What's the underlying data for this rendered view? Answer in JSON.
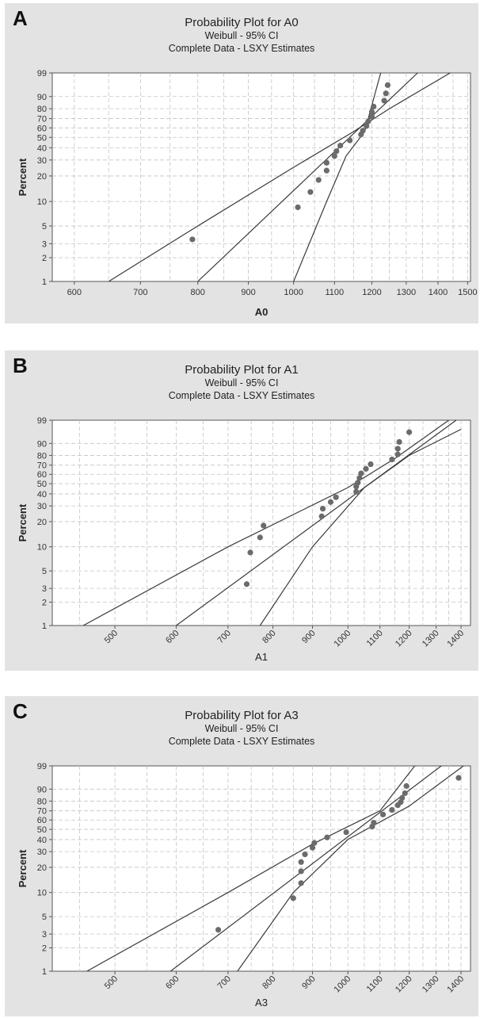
{
  "chart_data": [
    {
      "panel": "A",
      "type": "scatter",
      "title": "Probability Plot for A0",
      "subtitle_line1": "Weibull - 95% CI",
      "subtitle_line2": "Complete Data - LSXY Estimates",
      "xlabel": "A0",
      "ylabel": "Percent",
      "x_scale": "log",
      "y_scale": "weibull",
      "xlim": [
        570,
        1510
      ],
      "ylim": [
        1,
        99
      ],
      "grid": true,
      "x_ticks": [
        600,
        700,
        800,
        900,
        1000,
        1100,
        1200,
        1300,
        1400,
        1500
      ],
      "x_tick_labels": [
        "600",
        "700",
        "800",
        "900",
        "1000",
        "1100",
        "1200",
        "1300",
        "1400",
        "1500"
      ],
      "x_tick_rotated": false,
      "y_ticks": [
        1,
        2,
        3,
        5,
        10,
        20,
        30,
        40,
        50,
        60,
        70,
        80,
        90,
        99
      ],
      "y_tick_labels": [
        "1",
        "2",
        "3",
        "5",
        "10",
        "20",
        "30",
        "40",
        "50",
        "60",
        "70",
        "80",
        "90",
        "99"
      ],
      "points": [
        [
          790,
          3.4
        ],
        [
          1010,
          8.5
        ],
        [
          1040,
          13
        ],
        [
          1060,
          18
        ],
        [
          1080,
          23
        ],
        [
          1080,
          28
        ],
        [
          1100,
          33
        ],
        [
          1105,
          37
        ],
        [
          1115,
          42
        ],
        [
          1140,
          47
        ],
        [
          1170,
          53
        ],
        [
          1175,
          57
        ],
        [
          1185,
          62
        ],
        [
          1190,
          67
        ],
        [
          1200,
          72
        ],
        [
          1200,
          77
        ],
        [
          1205,
          82
        ],
        [
          1235,
          87
        ],
        [
          1240,
          92
        ],
        [
          1245,
          96
        ]
      ],
      "fit_line": [
        [
          800,
          1
        ],
        [
          1335,
          99
        ]
      ],
      "ci_upper": [
        [
          1000,
          1
        ],
        [
          1080,
          10
        ],
        [
          1130,
          33
        ],
        [
          1180,
          56
        ],
        [
          1225,
          99
        ]
      ],
      "ci_lower": [
        [
          650,
          1
        ],
        [
          800,
          5
        ],
        [
          1000,
          25
        ],
        [
          1150,
          56
        ],
        [
          1250,
          80
        ],
        [
          1440,
          99
        ]
      ]
    },
    {
      "panel": "B",
      "type": "scatter",
      "title": "Probability Plot for A1",
      "subtitle_line1": "Weibull - 95% CI",
      "subtitle_line2": "Complete Data - LSXY Estimates",
      "xlabel": "A1",
      "ylabel": "Percent",
      "x_scale": "log",
      "y_scale": "weibull",
      "xlim": [
        415,
        1440
      ],
      "ylim": [
        1,
        99
      ],
      "grid": true,
      "x_ticks": [
        500,
        600,
        700,
        800,
        900,
        1000,
        1100,
        1200,
        1300,
        1400
      ],
      "x_tick_labels": [
        "500",
        "600",
        "700",
        "800",
        "900",
        "1000",
        "1100",
        "1200",
        "1300",
        "1400"
      ],
      "x_tick_rotated": true,
      "y_ticks": [
        1,
        2,
        3,
        5,
        10,
        20,
        30,
        40,
        50,
        60,
        70,
        80,
        90,
        99
      ],
      "y_tick_labels": [
        "1",
        "2",
        "3",
        "5",
        "10",
        "20",
        "30",
        "40",
        "50",
        "60",
        "70",
        "80",
        "90",
        "99"
      ],
      "points": [
        [
          740,
          3.4
        ],
        [
          748,
          8.5
        ],
        [
          770,
          13
        ],
        [
          778,
          18
        ],
        [
          925,
          23
        ],
        [
          928,
          28
        ],
        [
          950,
          33
        ],
        [
          965,
          37
        ],
        [
          1025,
          42
        ],
        [
          1025,
          47
        ],
        [
          1030,
          51
        ],
        [
          1035,
          56
        ],
        [
          1040,
          61
        ],
        [
          1055,
          66
        ],
        [
          1070,
          71
        ],
        [
          1140,
          76
        ],
        [
          1160,
          81
        ],
        [
          1160,
          86
        ],
        [
          1165,
          91
        ],
        [
          1200,
          96
        ]
      ],
      "fit_line": [
        [
          600,
          1
        ],
        [
          1380,
          99
        ]
      ],
      "ci_upper": [
        [
          455,
          1
        ],
        [
          700,
          10
        ],
        [
          1000,
          46
        ],
        [
          1150,
          77
        ],
        [
          1350,
          99
        ]
      ],
      "ci_lower": [
        [
          770,
          1
        ],
        [
          900,
          10
        ],
        [
          1050,
          46
        ],
        [
          1200,
          80
        ],
        [
          1400,
          97
        ]
      ]
    },
    {
      "panel": "C",
      "type": "scatter",
      "title": "Probability Plot for A3",
      "subtitle_line1": "Weibull - 95% CI",
      "subtitle_line2": "Complete Data - LSXY Estimates",
      "xlabel": "A3",
      "ylabel": "Percent",
      "x_scale": "log",
      "y_scale": "weibull",
      "xlim": [
        415,
        1440
      ],
      "ylim": [
        1,
        99
      ],
      "grid": true,
      "x_ticks": [
        500,
        600,
        700,
        800,
        900,
        1000,
        1100,
        1200,
        1300,
        1400
      ],
      "x_tick_labels": [
        "500",
        "600",
        "700",
        "800",
        "900",
        "1000",
        "1100",
        "1200",
        "1300",
        "1400"
      ],
      "x_tick_rotated": true,
      "y_ticks": [
        1,
        2,
        3,
        5,
        10,
        20,
        30,
        40,
        50,
        60,
        70,
        80,
        90,
        99
      ],
      "y_tick_labels": [
        "1",
        "2",
        "3",
        "5",
        "10",
        "20",
        "30",
        "40",
        "50",
        "60",
        "70",
        "80",
        "90",
        "99"
      ],
      "points": [
        [
          680,
          3.4
        ],
        [
          850,
          8.5
        ],
        [
          870,
          13
        ],
        [
          870,
          18
        ],
        [
          870,
          23
        ],
        [
          880,
          28
        ],
        [
          900,
          33
        ],
        [
          905,
          37
        ],
        [
          940,
          42
        ],
        [
          995,
          47
        ],
        [
          1075,
          53
        ],
        [
          1080,
          57
        ],
        [
          1110,
          66
        ],
        [
          1140,
          71
        ],
        [
          1160,
          76
        ],
        [
          1170,
          79
        ],
        [
          1175,
          83
        ],
        [
          1185,
          87
        ],
        [
          1190,
          92
        ],
        [
          1390,
          96
        ]
      ],
      "fit_line": [
        [
          590,
          1
        ],
        [
          1320,
          99
        ]
      ],
      "ci_upper": [
        [
          460,
          1
        ],
        [
          700,
          10
        ],
        [
          900,
          36
        ],
        [
          1100,
          70
        ],
        [
          1220,
          99
        ]
      ],
      "ci_lower": [
        [
          720,
          1
        ],
        [
          850,
          10
        ],
        [
          1000,
          40
        ],
        [
          1200,
          75
        ],
        [
          1410,
          99
        ]
      ]
    }
  ]
}
